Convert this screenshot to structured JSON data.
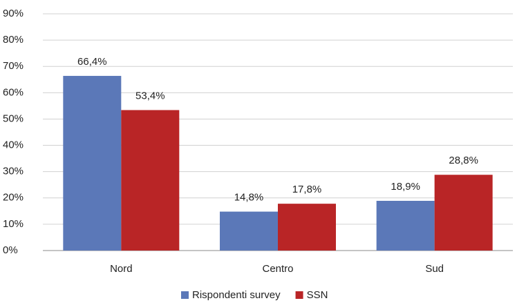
{
  "chart_data": {
    "type": "bar",
    "categories": [
      "Nord",
      "Centro",
      "Sud"
    ],
    "series": [
      {
        "name": "Rispondenti survey",
        "color": "#5b78b8",
        "values": [
          66.4,
          14.8,
          18.9
        ],
        "value_labels": [
          "66,4%",
          "14,8%",
          "18,9%"
        ]
      },
      {
        "name": "SSN",
        "color": "#b92526",
        "values": [
          53.4,
          17.8,
          28.8
        ],
        "value_labels": [
          "53,4%",
          "17,8%",
          "28,8%"
        ]
      }
    ],
    "ylim": [
      0,
      90
    ],
    "yticks": [
      {
        "value": 0,
        "label": "0%"
      },
      {
        "value": 10,
        "label": "10%"
      },
      {
        "value": 20,
        "label": "20%"
      },
      {
        "value": 30,
        "label": "30%"
      },
      {
        "value": 40,
        "label": "40%"
      },
      {
        "value": 50,
        "label": "50%"
      },
      {
        "value": 60,
        "label": "60%"
      },
      {
        "value": 70,
        "label": "70%"
      },
      {
        "value": 80,
        "label": "80%"
      },
      {
        "value": 90,
        "label": "90%"
      }
    ],
    "grid": true,
    "legend": "bottom"
  }
}
